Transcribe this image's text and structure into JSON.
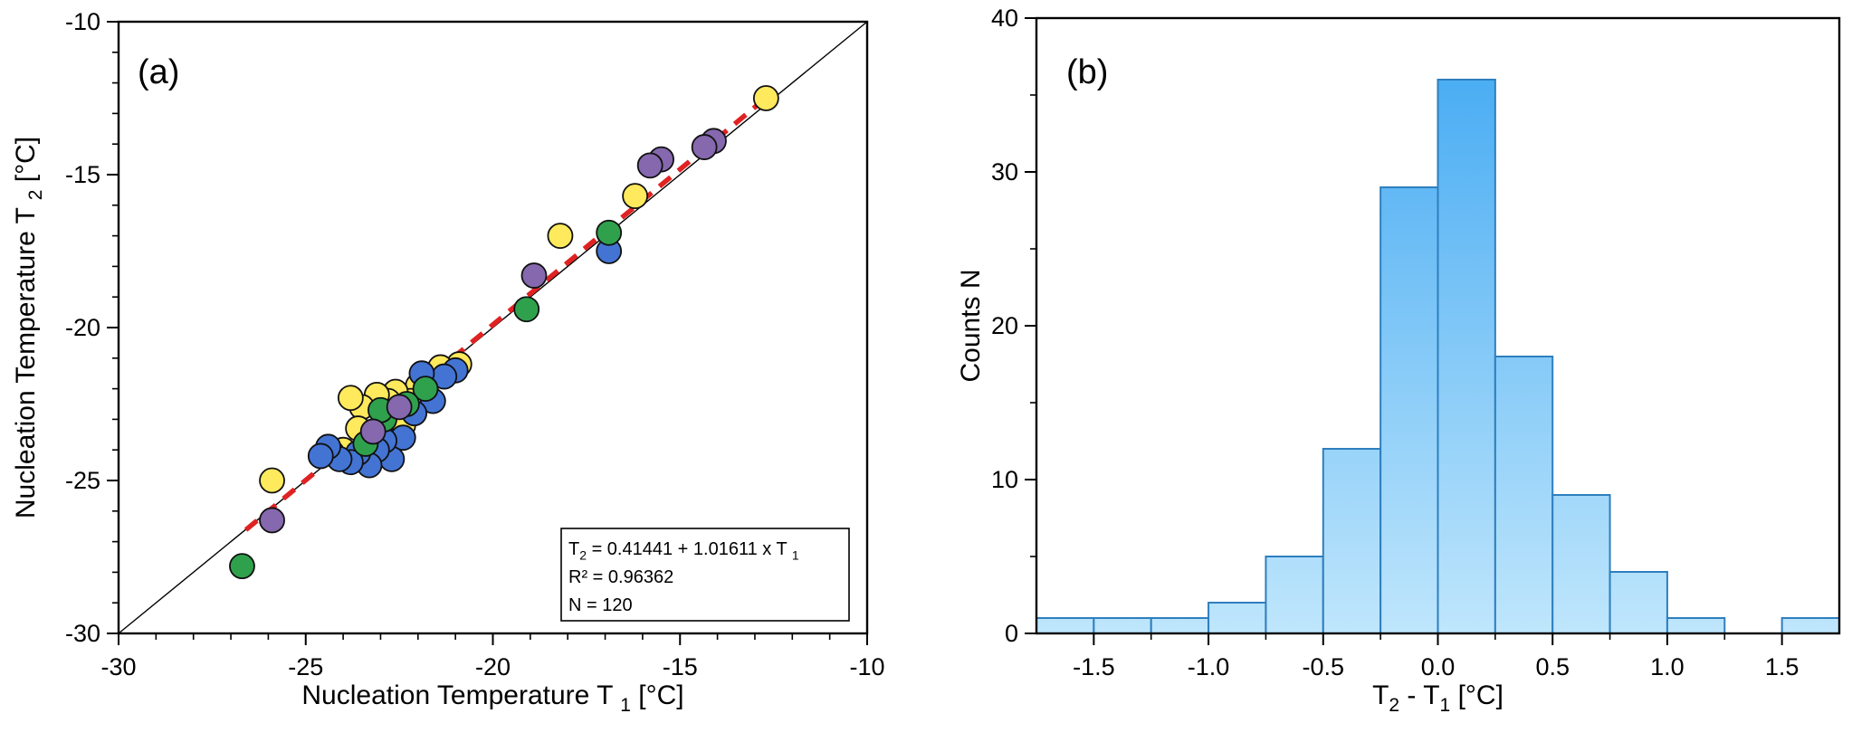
{
  "figure": {
    "background": "#ffffff",
    "panel_a_label": "(a)",
    "panel_b_label": "(b)"
  },
  "chart_data": [
    {
      "type": "scatter",
      "panel_label": "(a)",
      "xlabel_rich": [
        {
          "t": "Nucleation Temperature T "
        },
        {
          "t": "1",
          "sub": true
        },
        {
          "t": " [°C]"
        }
      ],
      "ylabel_rich": [
        {
          "t": "Nucleation Temperature T "
        },
        {
          "t": "2",
          "sub": true
        },
        {
          "t": " [°C]"
        }
      ],
      "xlim": [
        -30,
        -10
      ],
      "ylim": [
        -30,
        -10
      ],
      "x_ticks": [
        {
          "v": -30,
          "label": "-30"
        },
        {
          "v": -25,
          "label": "-25"
        },
        {
          "v": -20,
          "label": "-20"
        },
        {
          "v": -15,
          "label": "-15"
        },
        {
          "v": -10,
          "label": "-10"
        }
      ],
      "y_ticks": [
        {
          "v": -30,
          "label": "-30"
        },
        {
          "v": -25,
          "label": "-25"
        },
        {
          "v": -20,
          "label": "-20"
        },
        {
          "v": -15,
          "label": "-15"
        },
        {
          "v": -10,
          "label": "-10"
        }
      ],
      "minor_step": 1,
      "grid": false,
      "identity_line": {
        "x1": -30,
        "y1": -30,
        "x2": -10,
        "y2": -10,
        "color": "#000000"
      },
      "fit_line": {
        "intercept": 0.41441,
        "slope": 1.01611,
        "x_range": [
          -26.6,
          -12.5
        ],
        "color": "#e02222",
        "dashed": true
      },
      "annotation_lines": [
        [
          {
            "t": "T"
          },
          {
            "t": "2",
            "sub": true
          },
          {
            "t": " = 0.41441 + 1.01611 x T "
          },
          {
            "t": "1",
            "sub": true
          }
        ],
        [
          {
            "t": "R² = 0.96362"
          }
        ],
        [
          {
            "t": "N = 120"
          }
        ]
      ],
      "point_edge_color": "#111111",
      "note": "point coordinates estimated from figure; many of the N=120 points overlap in the central cluster",
      "series": [
        {
          "name": "yellow",
          "color": "#ffe95c",
          "points": [
            [
              -12.7,
              -12.5
            ],
            [
              -16.2,
              -15.7
            ],
            [
              -18.2,
              -17.0
            ],
            [
              -20.9,
              -21.2
            ],
            [
              -21.4,
              -21.3
            ],
            [
              -21.7,
              -22.3
            ],
            [
              -22.0,
              -21.9
            ],
            [
              -22.2,
              -22.4
            ],
            [
              -22.4,
              -23.2
            ],
            [
              -22.6,
              -22.1
            ],
            [
              -22.8,
              -22.4
            ],
            [
              -23.0,
              -23.3
            ],
            [
              -23.1,
              -22.2
            ],
            [
              -23.3,
              -23.5
            ],
            [
              -23.5,
              -22.6
            ],
            [
              -23.6,
              -23.3
            ],
            [
              -23.8,
              -22.3
            ],
            [
              -24.0,
              -24.0
            ],
            [
              -24.3,
              -24.1
            ],
            [
              -25.9,
              -25.0
            ]
          ]
        },
        {
          "name": "blue",
          "color": "#4374d4",
          "points": [
            [
              -16.9,
              -17.5
            ],
            [
              -21.0,
              -21.4
            ],
            [
              -21.3,
              -21.6
            ],
            [
              -21.6,
              -22.4
            ],
            [
              -21.9,
              -21.5
            ],
            [
              -22.1,
              -22.8
            ],
            [
              -22.4,
              -23.6
            ],
            [
              -22.7,
              -24.3
            ],
            [
              -22.9,
              -23.7
            ],
            [
              -23.1,
              -24.0
            ],
            [
              -23.3,
              -24.5
            ],
            [
              -23.6,
              -24.1
            ],
            [
              -23.8,
              -24.4
            ],
            [
              -24.1,
              -24.3
            ],
            [
              -24.4,
              -23.9
            ],
            [
              -24.6,
              -24.2
            ]
          ]
        },
        {
          "name": "green",
          "color": "#2fa14d",
          "points": [
            [
              -16.9,
              -16.9
            ],
            [
              -19.1,
              -19.4
            ],
            [
              -21.8,
              -22.0
            ],
            [
              -22.3,
              -22.5
            ],
            [
              -22.9,
              -23.0
            ],
            [
              -23.0,
              -22.7
            ],
            [
              -23.4,
              -23.8
            ],
            [
              -26.7,
              -27.8
            ]
          ]
        },
        {
          "name": "purple",
          "color": "#8568ae",
          "points": [
            [
              -14.1,
              -13.9
            ],
            [
              -14.35,
              -14.1
            ],
            [
              -15.5,
              -14.5
            ],
            [
              -15.8,
              -14.7
            ],
            [
              -18.9,
              -18.3
            ],
            [
              -22.5,
              -22.6
            ],
            [
              -23.2,
              -23.4
            ],
            [
              -25.9,
              -26.3
            ]
          ]
        }
      ]
    },
    {
      "type": "bar",
      "panel_label": "(b)",
      "xlabel_rich": [
        {
          "t": "T"
        },
        {
          "t": "2",
          "sub": true
        },
        {
          "t": " - T"
        },
        {
          "t": "1",
          "sub": true
        },
        {
          "t": " [°C]"
        }
      ],
      "ylabel_rich": [
        {
          "t": "Counts N"
        }
      ],
      "xlim": [
        -1.75,
        1.75
      ],
      "ylim": [
        0,
        40
      ],
      "bin_start": -1.75,
      "bin_width": 0.25,
      "counts": [
        1,
        1,
        1,
        2,
        5,
        12,
        29,
        36,
        18,
        9,
        4,
        1,
        0,
        1
      ],
      "total_n": 120,
      "x_ticks": [
        {
          "v": -1.5,
          "label": "-1.5"
        },
        {
          "v": -1.0,
          "label": "-1.0"
        },
        {
          "v": -0.5,
          "label": "-0.5"
        },
        {
          "v": 0.0,
          "label": "0.0"
        },
        {
          "v": 0.5,
          "label": "0.5"
        },
        {
          "v": 1.0,
          "label": "1.0"
        },
        {
          "v": 1.5,
          "label": "1.5"
        }
      ],
      "y_ticks": [
        {
          "v": 0,
          "label": "0"
        },
        {
          "v": 10,
          "label": "10"
        },
        {
          "v": 20,
          "label": "20"
        },
        {
          "v": 30,
          "label": "30"
        },
        {
          "v": 40,
          "label": "40"
        }
      ],
      "x_minor_step": 0.25,
      "y_minor_step": 5,
      "grid": false,
      "bar_fill_top": "#3ea7f2",
      "bar_fill_bottom": "#bfe6fc",
      "bar_border": "#2e7fbe"
    }
  ]
}
